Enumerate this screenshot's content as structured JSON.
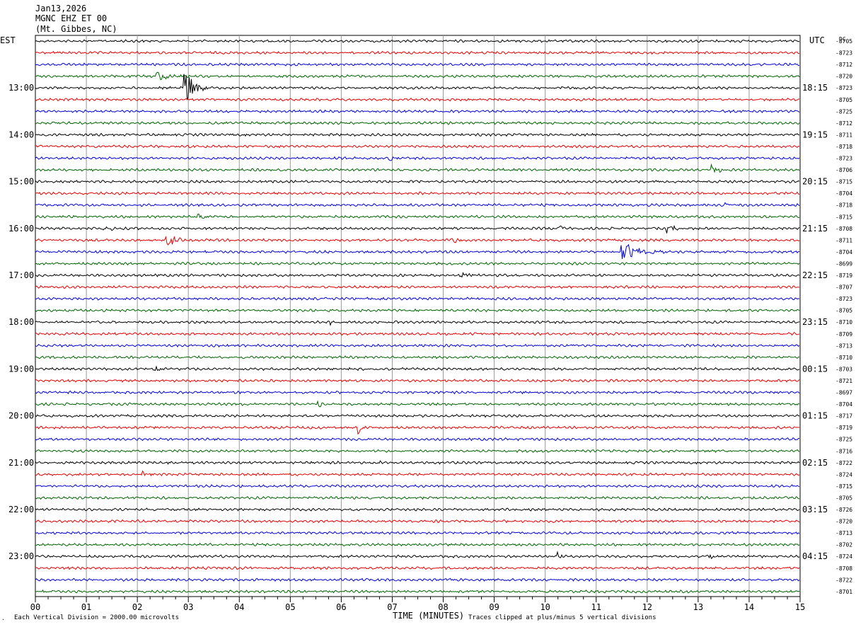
{
  "header": {
    "date": "Jan13,2026",
    "station": "MGNC EHZ ET 00",
    "location": "(Mt. Gibbes, NC)"
  },
  "left_timezone": "EST",
  "right_timezone": "UTC",
  "dc_label": "DC",
  "footer": {
    "scale_note": "Each Vertical Division = 2000.00 microvolts",
    "xlabel": "TIME (MINUTES)",
    "clip_note": "Traces clipped at plus/minus 5 vertical divisions"
  },
  "colors": {
    "trace_cycle": [
      "#000000",
      "#e60000",
      "#0000d8",
      "#006400"
    ],
    "grid": "#999999",
    "text": "#000000"
  },
  "chart_data": {
    "type": "line",
    "subtype": "helicorder",
    "x_ticks": [
      "00",
      "01",
      "02",
      "03",
      "04",
      "05",
      "06",
      "07",
      "08",
      "09",
      "10",
      "11",
      "12",
      "13",
      "14",
      "15"
    ],
    "xlim": [
      0,
      15
    ],
    "minutes_per_line": 15,
    "left_hour_labels": [
      "13:00",
      "14:00",
      "15:00",
      "16:00",
      "17:00",
      "18:00",
      "19:00",
      "20:00",
      "21:00",
      "22:00",
      "23:00"
    ],
    "right_hour_labels": [
      "18:15",
      "19:15",
      "20:15",
      "21:15",
      "22:15",
      "23:15",
      "00:15",
      "01:15",
      "02:15",
      "03:15",
      "04:15"
    ],
    "hour_label_rows": [
      4,
      8,
      12,
      16,
      20,
      24,
      28,
      32,
      36,
      40,
      44
    ],
    "dc_offsets": [
      "-8705",
      "-8723",
      "-8712",
      "-8720",
      "-8723",
      "-8705",
      "-8725",
      "-8712",
      "-8711",
      "-8718",
      "-8723",
      "-8706",
      "-8715",
      "-8704",
      "-8718",
      "-8715",
      "-8708",
      "-8711",
      "-8704",
      "-8699",
      "-8719",
      "-8707",
      "-8723",
      "-8705",
      "-8710",
      "-8709",
      "-8713",
      "-8710",
      "-8703",
      "-8721",
      "-8697",
      "-8704",
      "-8717",
      "-8719",
      "-8725",
      "-8716",
      "-8722",
      "-8724",
      "-8715",
      "-8705",
      "-8726",
      "-8720",
      "-8713",
      "-8702",
      "-8724",
      "-8708",
      "-8722",
      "-8701"
    ],
    "events": [
      {
        "row": 4,
        "minute": 2.93,
        "amplitude": 3.5,
        "duration": 0.4
      },
      {
        "row": 3,
        "minute": 2.4,
        "amplitude": 0.9,
        "duration": 0.5
      },
      {
        "row": 10,
        "minute": 6.95,
        "amplitude": 1.6,
        "duration": 0.15
      },
      {
        "row": 11,
        "minute": 13.25,
        "amplitude": 1.5,
        "duration": 0.3
      },
      {
        "row": 17,
        "minute": 2.55,
        "amplitude": 1.0,
        "duration": 0.5
      },
      {
        "row": 17,
        "minute": 8.15,
        "amplitude": 0.8,
        "duration": 0.4
      },
      {
        "row": 18,
        "minute": 11.5,
        "amplitude": 1.6,
        "duration": 0.8
      },
      {
        "row": 16,
        "minute": 10.25,
        "amplitude": 0.7,
        "duration": 0.3
      },
      {
        "row": 16,
        "minute": 12.4,
        "amplitude": 0.7,
        "duration": 0.3
      },
      {
        "row": 16,
        "minute": 1.35,
        "amplitude": 0.6,
        "duration": 0.3
      },
      {
        "row": 12,
        "minute": 0.0,
        "amplitude": 0.0,
        "duration": 0.0
      },
      {
        "row": 33,
        "minute": 6.35,
        "amplitude": 1.0,
        "duration": 0.1
      },
      {
        "row": 20,
        "minute": 8.35,
        "amplitude": 0.7,
        "duration": 0.2
      },
      {
        "row": 44,
        "minute": 10.25,
        "amplitude": 0.8,
        "duration": 0.1
      },
      {
        "row": 44,
        "minute": 13.25,
        "amplitude": 0.7,
        "duration": 0.1
      },
      {
        "row": 24,
        "minute": 5.8,
        "amplitude": 0.7,
        "duration": 0.1
      },
      {
        "row": 28,
        "minute": 2.35,
        "amplitude": 0.6,
        "duration": 0.3
      },
      {
        "row": 31,
        "minute": 5.55,
        "amplitude": 0.6,
        "duration": 0.2
      },
      {
        "row": 36,
        "minute": 6.75,
        "amplitude": 0.5,
        "duration": 0.2
      },
      {
        "row": 37,
        "minute": 2.1,
        "amplitude": 0.6,
        "duration": 0.2
      },
      {
        "row": 13,
        "minute": 7.5,
        "amplitude": 0.6,
        "duration": 0.1
      },
      {
        "row": 14,
        "minute": 13.5,
        "amplitude": 0.5,
        "duration": 0.2
      },
      {
        "row": 15,
        "minute": 3.2,
        "amplitude": 0.6,
        "duration": 0.3
      }
    ]
  }
}
